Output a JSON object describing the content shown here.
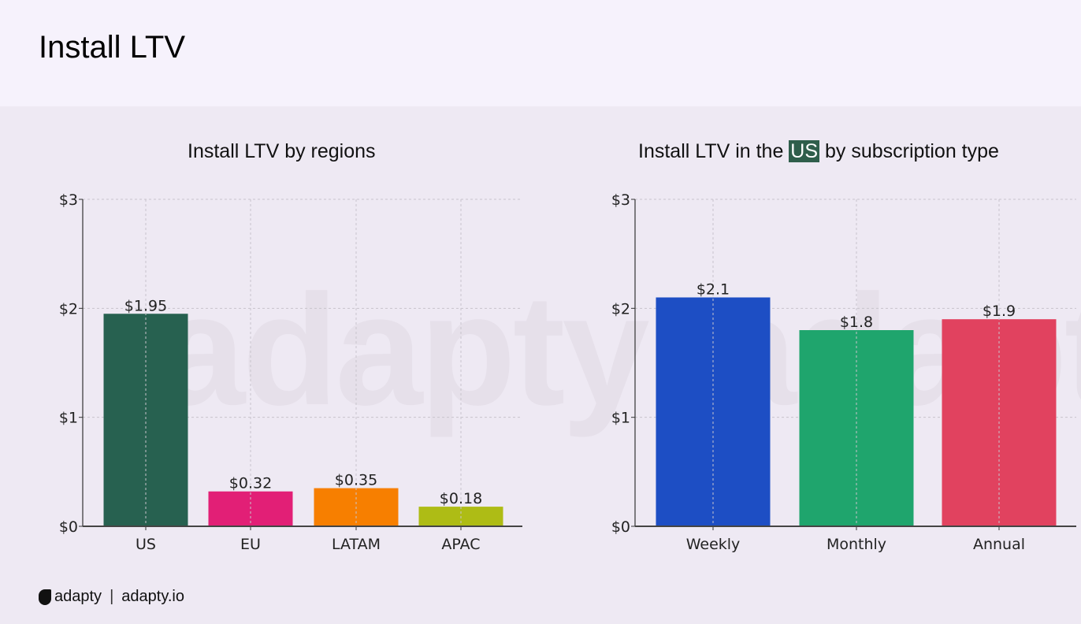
{
  "page_title": "Install LTV",
  "footer": {
    "brand": "adapty",
    "url": "adapty.io"
  },
  "watermark": "adapty",
  "chart_data": [
    {
      "type": "bar",
      "title": "Install LTV by regions",
      "categories": [
        "US",
        "EU",
        "LATAM",
        "APAC"
      ],
      "values": [
        1.95,
        0.32,
        0.35,
        0.18
      ],
      "data_labels": [
        "$1.95",
        "$0.32",
        "$0.35",
        "$0.18"
      ],
      "colors": [
        "#276150",
        "#e21f76",
        "#f77f00",
        "#aebc15"
      ],
      "ylim": [
        0,
        3
      ],
      "yticks": [
        "$0",
        "$1",
        "$2",
        "$3"
      ],
      "grid": true,
      "xlabel": "",
      "ylabel": ""
    },
    {
      "type": "bar",
      "title_parts": [
        "Install LTV in the ",
        "US",
        " by subscription type"
      ],
      "categories": [
        "Weekly",
        "Monthly",
        "Annual"
      ],
      "values": [
        2.1,
        1.8,
        1.9
      ],
      "data_labels": [
        "$2.1",
        "$1.8",
        "$1.9"
      ],
      "colors": [
        "#1d4ec4",
        "#1fa56d",
        "#e1425f"
      ],
      "highlight_color": "#2f5e4b",
      "ylim": [
        0,
        3
      ],
      "yticks": [
        "$0",
        "$1",
        "$2",
        "$3"
      ],
      "grid": true,
      "xlabel": "",
      "ylabel": ""
    }
  ]
}
